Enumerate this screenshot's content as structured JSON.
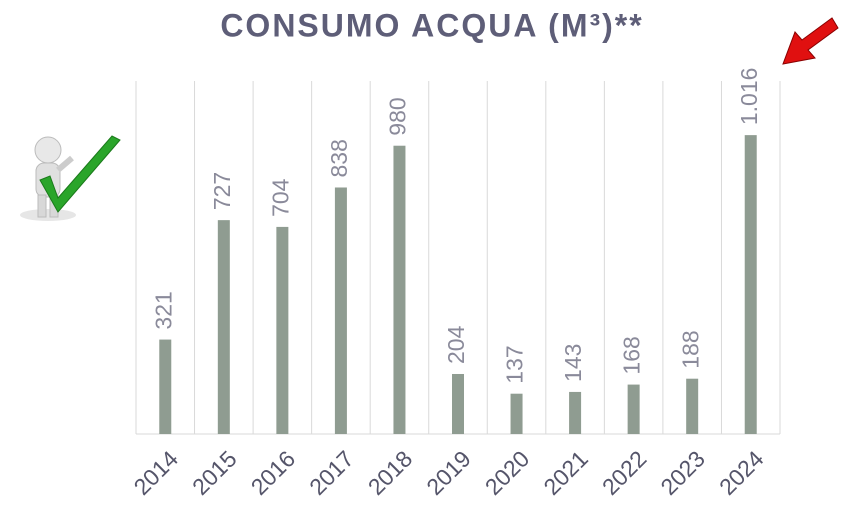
{
  "chart_data": {
    "type": "bar",
    "title": "CONSUMO ACQUA (M³)**",
    "categories": [
      "2014",
      "2015",
      "2016",
      "2017",
      "2018",
      "2019",
      "2020",
      "2021",
      "2022",
      "2023",
      "2024"
    ],
    "values": [
      321,
      727,
      704,
      838,
      980,
      204,
      137,
      143,
      168,
      188,
      1016
    ],
    "value_labels": [
      "321",
      "727",
      "704",
      "838",
      "980",
      "204",
      "137",
      "143",
      "168",
      "188",
      "1.016"
    ],
    "color": "#8f9c91",
    "ylim": [
      0,
      1200
    ]
  }
}
